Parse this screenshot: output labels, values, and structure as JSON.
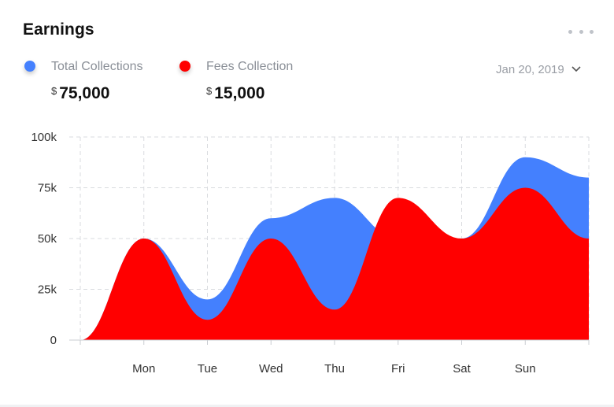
{
  "card": {
    "title": "Earnings",
    "menu_icon": "more-horizontal-icon"
  },
  "legend": [
    {
      "label": "Total Collections",
      "currency": "$",
      "amount": "75,000",
      "color": "#4480fe"
    },
    {
      "label": "Fees Collection",
      "currency": "$",
      "amount": "15,000",
      "color": "#ff0000"
    }
  ],
  "date_filter": {
    "value": "Jan 20, 2019",
    "icon": "chevron-down-icon"
  },
  "chart_data": {
    "type": "area",
    "categories": [
      "",
      "Mon",
      "Tue",
      "Wed",
      "Thu",
      "Fri",
      "Sat",
      "Sun",
      ""
    ],
    "xlabel": "",
    "ylabel": "",
    "ylim": [
      0,
      100000
    ],
    "yticks": [
      0,
      25000,
      50000,
      75000,
      100000
    ],
    "ytick_labels": [
      "0",
      "25k",
      "50k",
      "75k",
      "100k"
    ],
    "grid": true,
    "series": [
      {
        "name": "Total Collections",
        "color": "#4480fe",
        "values": [
          0,
          50000,
          20000,
          60000,
          70000,
          50000,
          50000,
          90000,
          80000
        ]
      },
      {
        "name": "Fees Collection",
        "color": "#ff0000",
        "values": [
          0,
          50000,
          10000,
          50000,
          15000,
          70000,
          50000,
          75000,
          50000
        ]
      }
    ]
  }
}
